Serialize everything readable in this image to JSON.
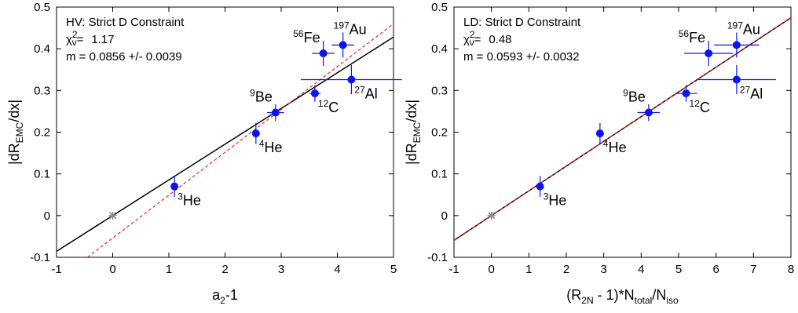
{
  "chart_data": [
    {
      "type": "scatter",
      "xlim": [
        -1,
        5
      ],
      "ylim": [
        -0.1,
        0.5
      ],
      "x_ticks": [
        "-1",
        "0",
        "1",
        "2",
        "3",
        "4",
        "5"
      ],
      "y_ticks": [
        "-0.1",
        "0",
        "0.1",
        "0.2",
        "0.3",
        "0.4",
        "0.5"
      ],
      "xlabel": {
        "main": "a",
        "sub": "2",
        "tail": "-1"
      },
      "ylabel": {
        "pre": "|dR",
        "sub": "EMC",
        "post": "/dx|"
      },
      "info": {
        "line1": "HV: Strict D Constraint",
        "chi_label": "χ",
        "chi_sup": "2",
        "chi_sub": "ν",
        "chi_eq": "=",
        "chi_value": "1.17",
        "m_line": "m =   0.0856 +/-  0.0039"
      },
      "points": [
        {
          "x": 1.1,
          "y": 0.07,
          "xerr": 0.0,
          "yerr": 0.025,
          "mass": "3",
          "sym": "He",
          "lpos": "br"
        },
        {
          "x": 2.55,
          "y": 0.197,
          "xerr": 0.0,
          "yerr": 0.025,
          "mass": "4",
          "sym": "He",
          "lpos": "br"
        },
        {
          "x": 2.9,
          "y": 0.247,
          "xerr": 0.15,
          "yerr": 0.02,
          "mass": "9",
          "sym": "Be",
          "lpos": "tl"
        },
        {
          "x": 3.6,
          "y": 0.293,
          "xerr": 0.1,
          "yerr": 0.02,
          "mass": "12",
          "sym": "C",
          "lpos": "br"
        },
        {
          "x": 3.75,
          "y": 0.389,
          "xerr": 0.2,
          "yerr": 0.03,
          "mass": "56",
          "sym": "Fe",
          "lpos": "tl"
        },
        {
          "x": 4.1,
          "y": 0.409,
          "xerr": 0.2,
          "yerr": 0.03,
          "mass": "197",
          "sym": "Au",
          "lpos": "tr"
        },
        {
          "x": 4.25,
          "y": 0.326,
          "xerr": 0.9,
          "yerr": 0.035,
          "mass": "27",
          "sym": "Al",
          "lpos": "br"
        }
      ],
      "origin_marker": {
        "x": 0,
        "y": 0,
        "symbol": "*",
        "color": "#888888"
      },
      "fit_line": {
        "slope": 0.0856,
        "intercept": 0.0,
        "color": "#000000"
      },
      "fit_dashed": {
        "x": [
          -0.45,
          5.0
        ],
        "y": [
          -0.1,
          0.46
        ],
        "color": "#e8241c"
      },
      "point_color": "#0a14f0"
    },
    {
      "type": "scatter",
      "xlim": [
        -1,
        8
      ],
      "ylim": [
        -0.1,
        0.5
      ],
      "x_ticks": [
        "-1",
        "0",
        "1",
        "2",
        "3",
        "4",
        "5",
        "6",
        "7",
        "8"
      ],
      "y_ticks": [
        "-0.1",
        "0",
        "0.1",
        "0.2",
        "0.3",
        "0.4",
        "0.5"
      ],
      "xlabel": {
        "pre": "(R",
        "sub1": "2N",
        "mid": " - 1)*N",
        "sub2": "total",
        "mid2": "/N",
        "sub3": "iso"
      },
      "ylabel": {
        "pre": "|dR",
        "sub": "EMC",
        "post": "/dx|"
      },
      "info": {
        "line1": "LD: Strict D Constraint",
        "chi_label": "χ",
        "chi_sup": "2",
        "chi_sub": "ν",
        "chi_eq": "=",
        "chi_value": "0.48",
        "m_line": "m =   0.0593 +/-  0.0032"
      },
      "points": [
        {
          "x": 1.3,
          "y": 0.07,
          "xerr": 0.0,
          "yerr": 0.025,
          "mass": "3",
          "sym": "He",
          "lpos": "br"
        },
        {
          "x": 2.9,
          "y": 0.197,
          "xerr": 0.0,
          "yerr": 0.025,
          "mass": "4",
          "sym": "He",
          "lpos": "br"
        },
        {
          "x": 4.2,
          "y": 0.247,
          "xerr": 0.3,
          "yerr": 0.02,
          "mass": "9",
          "sym": "Be",
          "lpos": "tl"
        },
        {
          "x": 5.2,
          "y": 0.293,
          "xerr": 0.3,
          "yerr": 0.02,
          "mass": "12",
          "sym": "C",
          "lpos": "br"
        },
        {
          "x": 5.8,
          "y": 0.389,
          "xerr": 0.65,
          "yerr": 0.03,
          "mass": "56",
          "sym": "Fe",
          "lpos": "tl"
        },
        {
          "x": 6.55,
          "y": 0.409,
          "xerr": 0.6,
          "yerr": 0.03,
          "mass": "197",
          "sym": "Au",
          "lpos": "tr"
        },
        {
          "x": 6.55,
          "y": 0.326,
          "xerr": 1.05,
          "yerr": 0.035,
          "mass": "27",
          "sym": "Al",
          "lpos": "br"
        }
      ],
      "origin_marker": {
        "x": 0,
        "y": 0,
        "symbol": "*",
        "color": "#888888"
      },
      "fit_line": {
        "slope": 0.0593,
        "intercept": 0.0,
        "color": "#000000"
      },
      "fit_dashed": {
        "x": [
          -1.0,
          8.0
        ],
        "y": [
          -0.059,
          0.474
        ],
        "color": "#e8241c"
      },
      "point_color": "#0a14f0"
    }
  ]
}
